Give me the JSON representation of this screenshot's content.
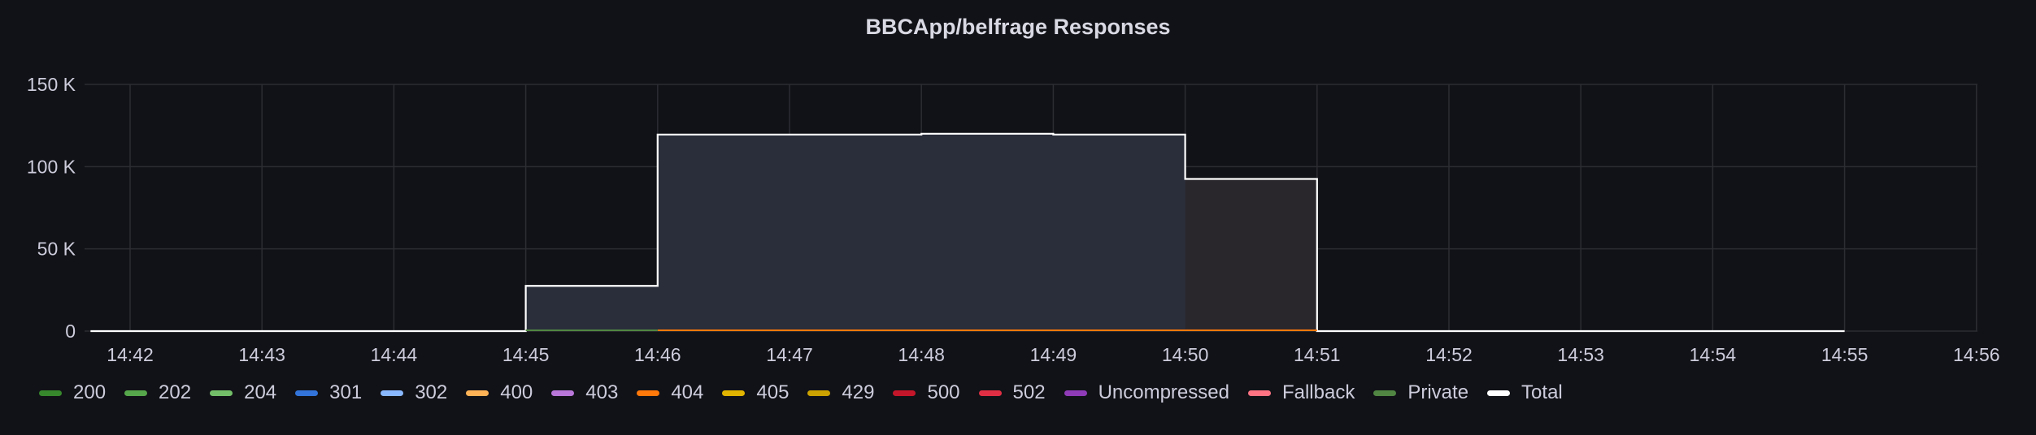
{
  "panel": {
    "title": "BBCApp/belfrage Responses"
  },
  "chart_data": {
    "type": "area",
    "title": "BBCApp/belfrage Responses",
    "xlabel": "",
    "ylabel": "",
    "x_ticks": [
      "14:42",
      "14:43",
      "14:44",
      "14:45",
      "14:46",
      "14:47",
      "14:48",
      "14:49",
      "14:50",
      "14:51",
      "14:52",
      "14:53",
      "14:54",
      "14:55",
      "14:56"
    ],
    "y_ticks": [
      "0",
      "50 K",
      "100 K",
      "150 K"
    ],
    "y_tick_values": [
      0,
      50000,
      100000,
      150000
    ],
    "ylim": [
      0,
      150000
    ],
    "xlim_minutes": [
      "14:41.7",
      "14:56"
    ],
    "step": "after",
    "grid": true,
    "legend_position": "bottom",
    "series": [
      {
        "name": "200",
        "color": "#37872d",
        "values": []
      },
      {
        "name": "202",
        "color": "#56a64b",
        "values": []
      },
      {
        "name": "204",
        "color": "#73bf69",
        "values": []
      },
      {
        "name": "301",
        "color": "#3274d9",
        "values": []
      },
      {
        "name": "302",
        "color": "#8ab8ff",
        "values": []
      },
      {
        "name": "400",
        "color": "#ffb357",
        "values": []
      },
      {
        "name": "403",
        "color": "#b877d9",
        "values": []
      },
      {
        "name": "404",
        "color": "#ff780a",
        "values": []
      },
      {
        "name": "405",
        "color": "#e0b400",
        "values": []
      },
      {
        "name": "429",
        "color": "#cca300",
        "values": []
      },
      {
        "name": "500",
        "color": "#c4162a",
        "values": []
      },
      {
        "name": "502",
        "color": "#e02f44",
        "values": []
      },
      {
        "name": "Uncompressed",
        "color": "#8f3bb8",
        "values": []
      },
      {
        "name": "Fallback",
        "color": "#ff7383",
        "values": []
      },
      {
        "name": "Private",
        "color": "#508642",
        "values": []
      },
      {
        "name": "Total",
        "color": "#ffffff",
        "x": [
          "14:42",
          "14:43",
          "14:44",
          "14:45",
          "14:46",
          "14:47",
          "14:48",
          "14:49",
          "14:50",
          "14:51",
          "14:52",
          "14:53",
          "14:54",
          "14:55"
        ],
        "values": [
          0,
          0,
          0,
          27500,
          119500,
          119500,
          120000,
          119500,
          92500,
          0,
          0,
          0,
          0,
          0
        ]
      }
    ]
  }
}
